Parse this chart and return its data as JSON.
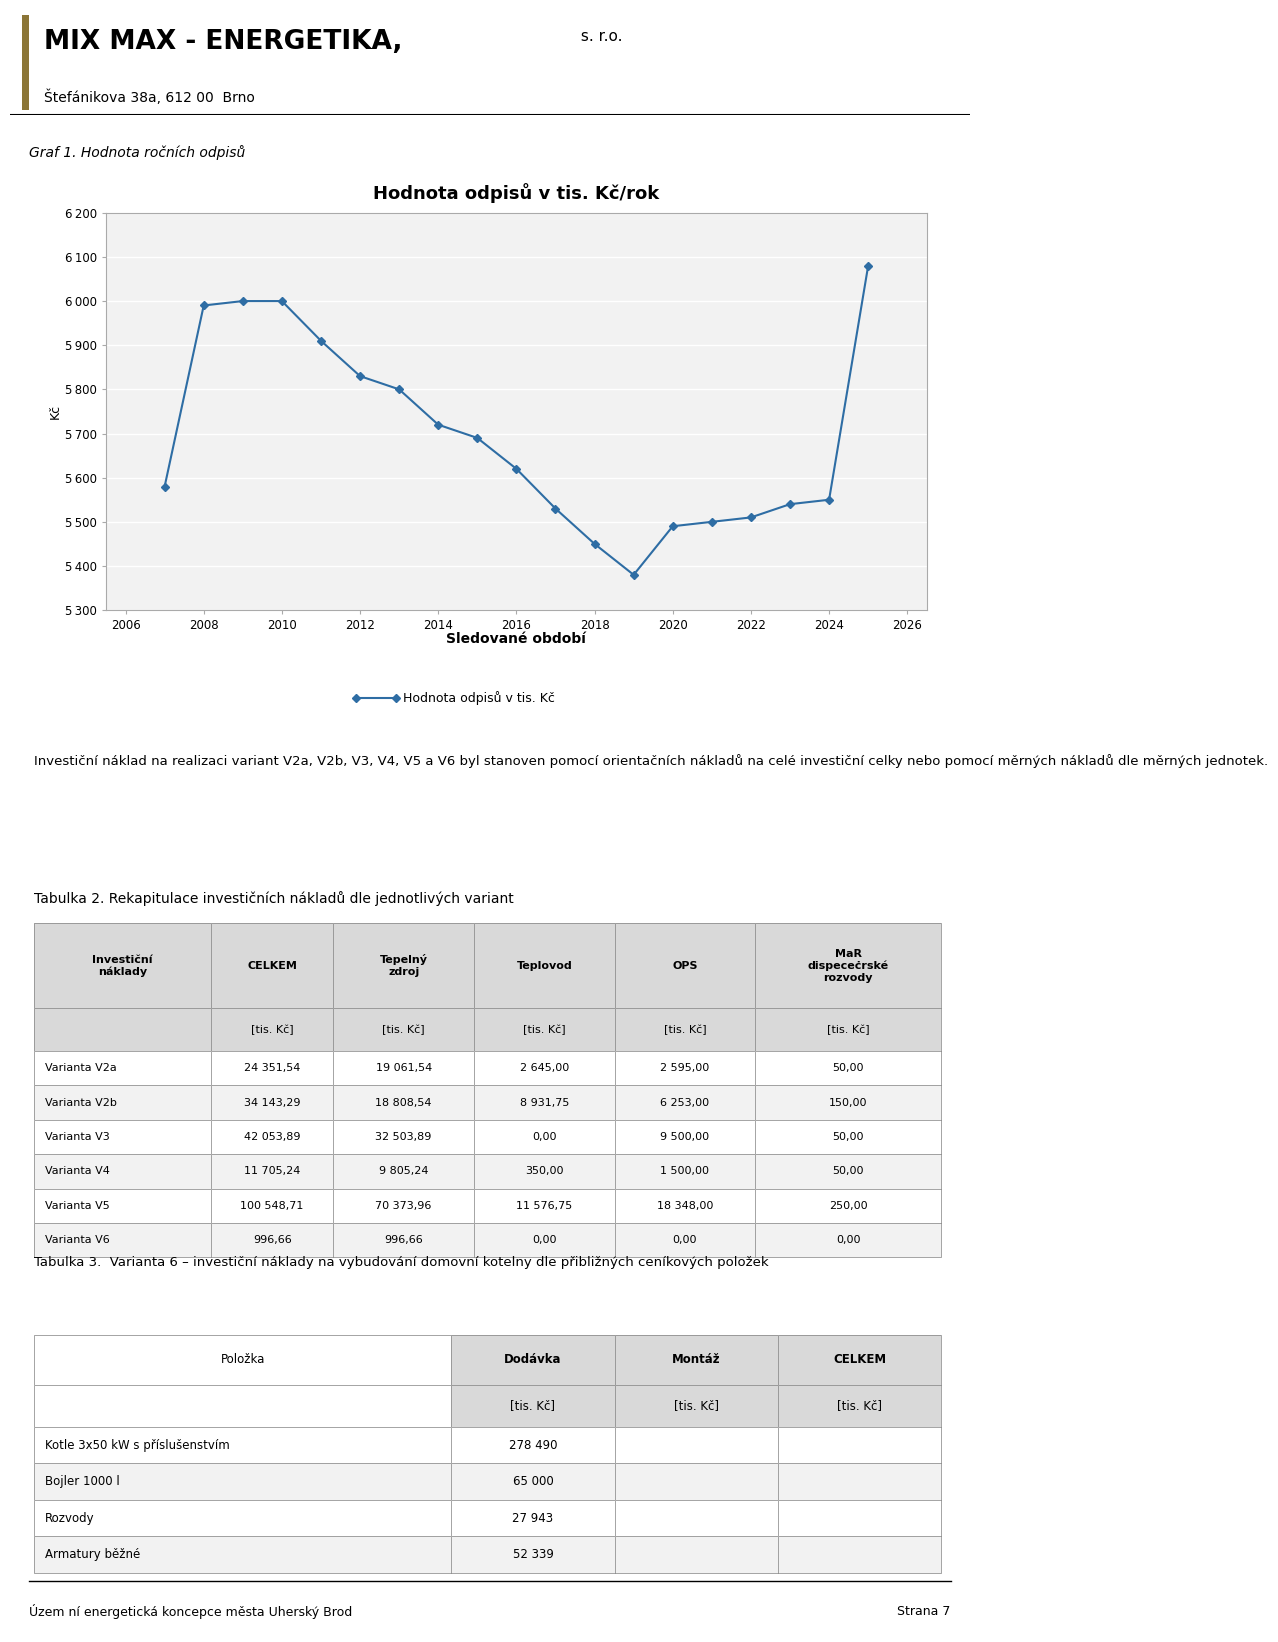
{
  "header_company": "MIX MAX - ENERGETIKA,",
  "header_sro": " s. r.o.",
  "header_address": "Štefánikova 38a, 612 00  Brno",
  "graf_label": "Graf 1. Hodnota ročních odpisů",
  "chart_title": "Hodnota odpisů v tis. Kč/rok",
  "xlabel": "Sledované období",
  "ylabel": "Kč",
  "legend_label": "Hodnota odpisů v tis. Kč",
  "years": [
    2007,
    2008,
    2009,
    2010,
    2011,
    2012,
    2013,
    2014,
    2015,
    2016,
    2017,
    2018,
    2019,
    2020,
    2021,
    2022,
    2023,
    2024,
    2025
  ],
  "values": [
    5580,
    5990,
    6000,
    6000,
    5910,
    5830,
    5800,
    5720,
    5690,
    5620,
    5530,
    5450,
    5380,
    5490,
    5500,
    5510,
    5540,
    5550,
    6080
  ],
  "xticks": [
    2006,
    2008,
    2010,
    2012,
    2014,
    2016,
    2018,
    2020,
    2022,
    2024,
    2026
  ],
  "ylim": [
    5300,
    6200
  ],
  "yticks": [
    5300,
    5400,
    5500,
    5600,
    5700,
    5800,
    5900,
    6000,
    6100,
    6200
  ],
  "line_color": "#2E6DA4",
  "marker": "D",
  "marker_size": 4,
  "chart_bg": "#F2F2F2",
  "grid_color": "#FFFFFF",
  "text_paragraph1": "Investiční náklad na realizaci variant V2a, V2b, V3, V4, V5 a V6 byl stanoven pomocí orientačních nákladů na celé investiční celky nebo pomocí měrných nákladů dle měrných jednotek.",
  "tabulka2_title": "Tabulka 2. Rekapitulace investičních nákladů dle jednotlivých variant",
  "table2_headers": [
    "Investiční\nnáklady",
    "CELKEM",
    "Tepelný\nzdroj",
    "Teplovod",
    "OPS",
    "MaR\ndispeceċrské\nrozvody"
  ],
  "table2_subheaders": [
    "",
    "[tis. Kč]",
    "[tis. Kč]",
    "[tis. Kč]",
    "[tis. Kč]",
    "[tis. Kč]"
  ],
  "table2_rows": [
    [
      "Varianta V2a",
      "24 351,54",
      "19 061,54",
      "2 645,00",
      "2 595,00",
      "50,00"
    ],
    [
      "Varianta V2b",
      "34 143,29",
      "18 808,54",
      "8 931,75",
      "6 253,00",
      "150,00"
    ],
    [
      "Varianta V3",
      "42 053,89",
      "32 503,89",
      "0,00",
      "9 500,00",
      "50,00"
    ],
    [
      "Varianta V4",
      "11 705,24",
      "9 805,24",
      "350,00",
      "1 500,00",
      "50,00"
    ],
    [
      "Varianta V5",
      "100 548,71",
      "70 373,96",
      "11 576,75",
      "18 348,00",
      "250,00"
    ],
    [
      "Varianta V6",
      "996,66",
      "996,66",
      "0,00",
      "0,00",
      "0,00"
    ]
  ],
  "tabulka3_title": "Tabulka 3.  Varianta 6 – investiční náklady na vybudování domovní kotelny dle přibližných ceníkových položek",
  "table3_headers": [
    "Položka",
    "Dodávka",
    "Montáž",
    "CELKEM"
  ],
  "table3_subheaders": [
    "",
    "[tis. Kč]",
    "[tis. Kč]",
    "[tis. Kč]"
  ],
  "table3_rows": [
    [
      "Kotle 3x50 kW s příslušenstvím",
      "278 490",
      "",
      ""
    ],
    [
      "Bojler 1000 l",
      "65 000",
      "",
      ""
    ],
    [
      "Rozvody",
      "27 943",
      "",
      ""
    ],
    [
      "Armatury běžné",
      "52 339",
      "",
      ""
    ]
  ],
  "footer_left": "Územ ní energetická koncepce města Uherský Brod",
  "footer_right": "Strana 7"
}
